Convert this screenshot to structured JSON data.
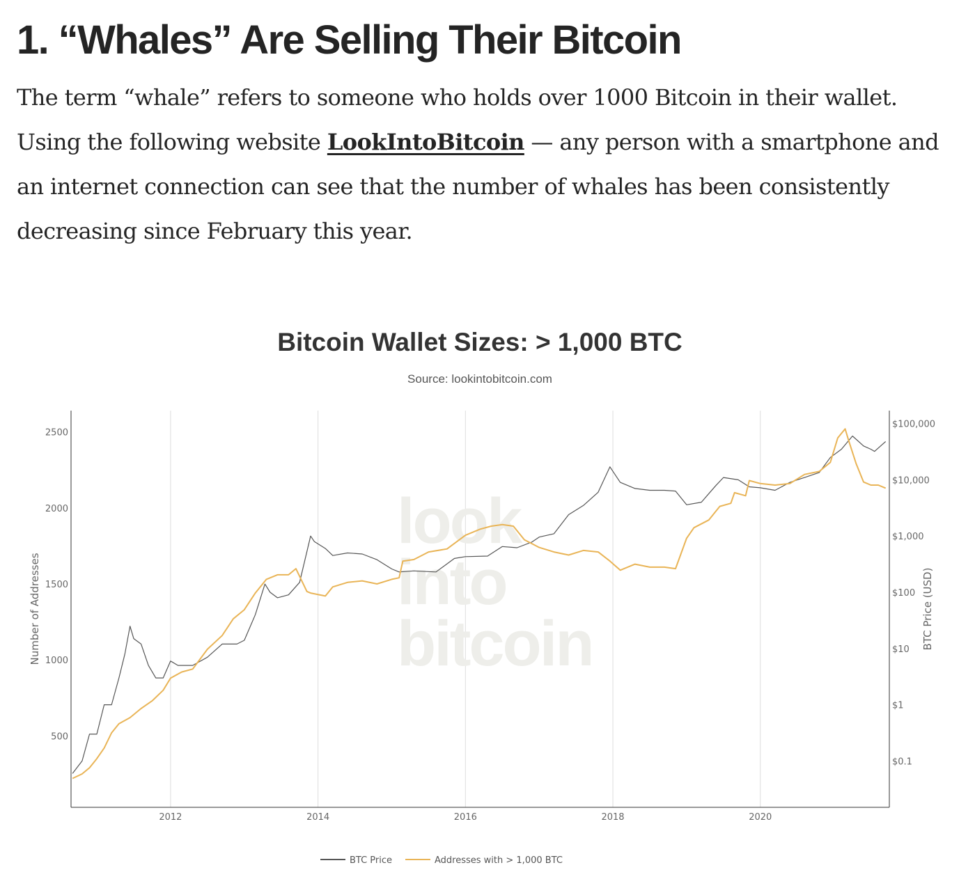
{
  "article": {
    "heading": "1. “Whales” Are Selling Their Bitcoin",
    "para_before": "The term “whale” refers to someone who holds over 1000 Bitcoin in their wallet. Using the following website ",
    "link_text": "LookIntoBitcoin",
    "para_after": " — any person with a smartphone and an internet connection can see that the number of whales has been consistently decreasing since February this year."
  },
  "chart_data": {
    "type": "line",
    "title": "Bitcoin Wallet Sizes: > 1,000 BTC",
    "subtitle": "Source: lookintobitcoin.com",
    "watermark": [
      "look",
      "into",
      "bitcoin"
    ],
    "x_range": [
      2010.65,
      2021.75
    ],
    "x_ticks": [
      2012,
      2014,
      2016,
      2018,
      2020
    ],
    "x_tick_labels": [
      "2012",
      "2014",
      "2016",
      "2018",
      "2020"
    ],
    "grid": true,
    "legend_position": "bottom",
    "y_left": {
      "label": "Number of Addresses",
      "range": [
        30,
        2640
      ],
      "ticks": [
        500,
        1000,
        1500,
        2000,
        2500
      ],
      "tick_labels": [
        "500",
        "1000",
        "1500",
        "2000",
        "2500"
      ]
    },
    "y_right": {
      "label": "BTC Price (USD)",
      "scale": "log",
      "range": [
        0.015,
        170000
      ],
      "ticks": [
        0.1,
        1,
        10,
        100,
        1000,
        10000,
        100000
      ],
      "tick_labels": [
        "$0.1",
        "$1",
        "$10",
        "$100",
        "$1,000",
        "$10,000",
        "$100,000"
      ]
    },
    "series": [
      {
        "name": "BTC Price",
        "axis": "right",
        "color": "#555555",
        "x": [
          2010.67,
          2010.8,
          2010.9,
          2011.0,
          2011.1,
          2011.2,
          2011.3,
          2011.38,
          2011.45,
          2011.5,
          2011.6,
          2011.7,
          2011.8,
          2011.9,
          2012.0,
          2012.1,
          2012.3,
          2012.5,
          2012.7,
          2012.9,
          2013.0,
          2013.15,
          2013.28,
          2013.35,
          2013.45,
          2013.6,
          2013.75,
          2013.9,
          2013.95,
          2014.1,
          2014.2,
          2014.4,
          2014.6,
          2014.8,
          2015.0,
          2015.1,
          2015.3,
          2015.6,
          2015.85,
          2016.0,
          2016.3,
          2016.5,
          2016.7,
          2016.9,
          2017.0,
          2017.2,
          2017.4,
          2017.6,
          2017.8,
          2017.96,
          2018.1,
          2018.3,
          2018.5,
          2018.7,
          2018.85,
          2019.0,
          2019.2,
          2019.4,
          2019.5,
          2019.7,
          2019.85,
          2020.0,
          2020.2,
          2020.4,
          2020.6,
          2020.8,
          2020.95,
          2021.1,
          2021.25,
          2021.4,
          2021.5,
          2021.55,
          2021.65,
          2021.7
        ],
        "y": [
          0.06,
          0.1,
          0.3,
          0.3,
          1.0,
          1.0,
          3.0,
          8.0,
          25.0,
          15.0,
          12.0,
          5.0,
          3.0,
          3.0,
          6.0,
          5.0,
          5.0,
          7.0,
          12.0,
          12.0,
          14.0,
          40.0,
          140.0,
          100.0,
          80.0,
          90.0,
          150.0,
          1000.0,
          800.0,
          600.0,
          450.0,
          500.0,
          480.0,
          380.0,
          260.0,
          230.0,
          240.0,
          230.0,
          400.0,
          430.0,
          440.0,
          650.0,
          620.0,
          780.0,
          960.0,
          1100.0,
          2400.0,
          3500.0,
          6000.0,
          17000.0,
          9000.0,
          7000.0,
          6500.0,
          6500.0,
          6300.0,
          3600.0,
          4000.0,
          8000.0,
          11000.0,
          10000.0,
          7500.0,
          7200.0,
          6500.0,
          9000.0,
          11000.0,
          13500.0,
          25000.0,
          35000.0,
          60000.0,
          40000.0,
          35000.0,
          32000.0,
          42000.0,
          48000.0
        ]
      },
      {
        "name": "Addresses with > 1,000 BTC",
        "axis": "left",
        "color": "#e9b456",
        "x": [
          2010.67,
          2010.8,
          2010.9,
          2011.0,
          2011.1,
          2011.2,
          2011.3,
          2011.45,
          2011.6,
          2011.75,
          2011.9,
          2012.0,
          2012.15,
          2012.3,
          2012.5,
          2012.7,
          2012.85,
          2013.0,
          2013.15,
          2013.3,
          2013.45,
          2013.6,
          2013.7,
          2013.85,
          2013.9,
          2014.1,
          2014.2,
          2014.4,
          2014.6,
          2014.8,
          2015.0,
          2015.1,
          2015.15,
          2015.3,
          2015.5,
          2015.75,
          2016.0,
          2016.2,
          2016.35,
          2016.5,
          2016.65,
          2016.8,
          2017.0,
          2017.2,
          2017.4,
          2017.6,
          2017.8,
          2017.96,
          2018.1,
          2018.3,
          2018.5,
          2018.7,
          2018.85,
          2019.0,
          2019.1,
          2019.3,
          2019.45,
          2019.6,
          2019.65,
          2019.8,
          2019.85,
          2020.0,
          2020.2,
          2020.4,
          2020.6,
          2020.8,
          2020.95,
          2021.05,
          2021.15,
          2021.2,
          2021.3,
          2021.4,
          2021.5,
          2021.6,
          2021.7
        ],
        "y": [
          220,
          250,
          290,
          350,
          420,
          520,
          580,
          620,
          680,
          730,
          800,
          880,
          920,
          940,
          1070,
          1160,
          1270,
          1330,
          1440,
          1530,
          1560,
          1560,
          1600,
          1450,
          1440,
          1420,
          1480,
          1510,
          1520,
          1500,
          1530,
          1540,
          1650,
          1660,
          1710,
          1730,
          1820,
          1860,
          1880,
          1890,
          1880,
          1790,
          1740,
          1710,
          1690,
          1720,
          1710,
          1650,
          1590,
          1630,
          1610,
          1610,
          1600,
          1800,
          1870,
          1920,
          2010,
          2030,
          2100,
          2080,
          2180,
          2160,
          2150,
          2160,
          2220,
          2240,
          2300,
          2460,
          2520,
          2440,
          2290,
          2170,
          2150,
          2150,
          2130
        ]
      }
    ]
  }
}
